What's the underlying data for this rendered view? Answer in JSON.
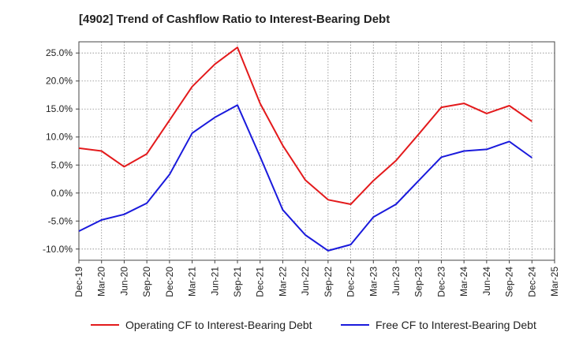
{
  "chart_data": {
    "type": "line",
    "title": "[4902]  Trend of Cashflow Ratio to Interest-Bearing Debt",
    "xlabel": "",
    "ylabel": "",
    "ylim": [
      -12,
      27
    ],
    "y_ticks": [
      "25.0%",
      "20.0%",
      "15.0%",
      "10.0%",
      "5.0%",
      "0.0%",
      "-5.0%",
      "-10.0%"
    ],
    "y_tick_values": [
      25,
      20,
      15,
      10,
      5,
      0,
      -5,
      -10
    ],
    "x_ticks": [
      "Dec-19",
      "Mar-20",
      "Jun-20",
      "Sep-20",
      "Dec-20",
      "Mar-21",
      "Jun-21",
      "Sep-21",
      "Dec-21",
      "Mar-22",
      "Jun-22",
      "Sep-22",
      "Dec-22",
      "Mar-23",
      "Jun-23",
      "Sep-23",
      "Dec-23",
      "Mar-24",
      "Jun-24",
      "Sep-24",
      "Dec-24",
      "Mar-25"
    ],
    "grid": true,
    "legend_position": "bottom",
    "series": [
      {
        "name": "Operating CF to Interest-Bearing Debt",
        "color": "#e31a1c",
        "values": [
          8.0,
          7.5,
          4.7,
          7.0,
          13.0,
          19.0,
          23.0,
          26.0,
          16.0,
          8.5,
          2.3,
          -1.2,
          -2.0,
          2.2,
          5.8,
          10.5,
          15.3,
          16.0,
          14.2,
          15.6,
          12.8
        ]
      },
      {
        "name": "Free CF to Interest-Bearing Debt",
        "color": "#1a1adc",
        "values": [
          -6.8,
          -4.8,
          -3.8,
          -1.8,
          3.3,
          10.7,
          13.5,
          15.7,
          6.5,
          -3.0,
          -7.5,
          -10.3,
          -9.2,
          -4.3,
          -2.0,
          2.2,
          6.4,
          7.5,
          7.8,
          9.2,
          6.3
        ]
      }
    ]
  }
}
